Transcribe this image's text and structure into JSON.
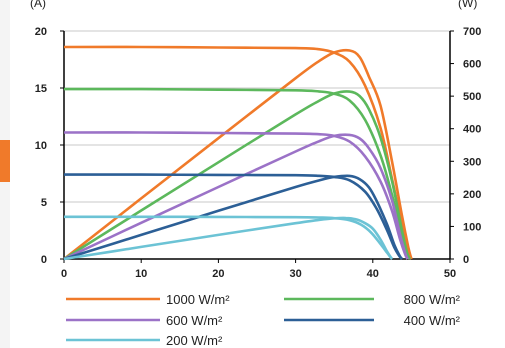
{
  "chart_data": {
    "type": "line",
    "title": "",
    "left_axis": {
      "unit_label": "(A)",
      "range": [
        0,
        20
      ],
      "ticks": [
        0,
        5,
        10,
        15,
        20
      ]
    },
    "right_axis": {
      "unit_label": "(W)",
      "range": [
        0,
        700
      ],
      "ticks": [
        0,
        100,
        200,
        300,
        400,
        500,
        600,
        700
      ]
    },
    "x_axis": {
      "range": [
        0,
        50
      ],
      "ticks": [
        0,
        10,
        20,
        30,
        40,
        50
      ]
    },
    "grid": true,
    "legend_position": "bottom",
    "series": [
      {
        "name": "1000 W/m²",
        "color": "#f07a2a",
        "current": [
          [
            0,
            18.6
          ],
          [
            10,
            18.6
          ],
          [
            20,
            18.55
          ],
          [
            30,
            18.5
          ],
          [
            33,
            18.4
          ],
          [
            35,
            18.1
          ],
          [
            37,
            17.3
          ],
          [
            39,
            15.2
          ],
          [
            41,
            11.5
          ],
          [
            42.5,
            7.0
          ],
          [
            43.8,
            3.0
          ],
          [
            44.6,
            0.8
          ],
          [
            45,
            0
          ]
        ],
        "power": [
          [
            0,
            0
          ],
          [
            10,
            186
          ],
          [
            20,
            371
          ],
          [
            30,
            555
          ],
          [
            33,
            607
          ],
          [
            35,
            634
          ],
          [
            37,
            640
          ],
          [
            38.3,
            620
          ],
          [
            39.5,
            560
          ],
          [
            41,
            471
          ],
          [
            42.5,
            298
          ],
          [
            43.8,
            131
          ],
          [
            44.6,
            36
          ],
          [
            45,
            0
          ]
        ]
      },
      {
        "name": "800 W/m²",
        "color": "#5cb85c",
        "current": [
          [
            0,
            14.9
          ],
          [
            10,
            14.9
          ],
          [
            20,
            14.85
          ],
          [
            30,
            14.8
          ],
          [
            33,
            14.7
          ],
          [
            35,
            14.5
          ],
          [
            37,
            13.9
          ],
          [
            39,
            12.2
          ],
          [
            41,
            9.1
          ],
          [
            42.5,
            5.6
          ],
          [
            43.7,
            2.2
          ],
          [
            44.4,
            0.5
          ],
          [
            44.8,
            0
          ]
        ],
        "power": [
          [
            0,
            0
          ],
          [
            10,
            149
          ],
          [
            20,
            297
          ],
          [
            30,
            444
          ],
          [
            33,
            485
          ],
          [
            35,
            508
          ],
          [
            37,
            514
          ],
          [
            38.3,
            500
          ],
          [
            39.5,
            460
          ],
          [
            41,
            373
          ],
          [
            42.5,
            238
          ],
          [
            43.7,
            96
          ],
          [
            44.4,
            22
          ],
          [
            44.8,
            0
          ]
        ]
      },
      {
        "name": "600 W/m²",
        "color": "#9b72c7",
        "current": [
          [
            0,
            11.1
          ],
          [
            10,
            11.1
          ],
          [
            20,
            11.05
          ],
          [
            30,
            11.0
          ],
          [
            33,
            10.95
          ],
          [
            35,
            10.8
          ],
          [
            37,
            10.3
          ],
          [
            39,
            9.0
          ],
          [
            41,
            6.8
          ],
          [
            42.5,
            4.2
          ],
          [
            43.5,
            1.8
          ],
          [
            44.2,
            0.4
          ],
          [
            44.5,
            0
          ]
        ],
        "power": [
          [
            0,
            0
          ],
          [
            10,
            111
          ],
          [
            20,
            221
          ],
          [
            30,
            330
          ],
          [
            33,
            361
          ],
          [
            35,
            378
          ],
          [
            37,
            381
          ],
          [
            38.3,
            370
          ],
          [
            39.5,
            340
          ],
          [
            41,
            279
          ],
          [
            42.5,
            179
          ],
          [
            43.5,
            78
          ],
          [
            44.2,
            18
          ],
          [
            44.5,
            0
          ]
        ]
      },
      {
        "name": "400 W/m²",
        "color": "#2c5f96",
        "current": [
          [
            0,
            7.4
          ],
          [
            10,
            7.4
          ],
          [
            20,
            7.38
          ],
          [
            30,
            7.35
          ],
          [
            33,
            7.3
          ],
          [
            35,
            7.2
          ],
          [
            37,
            6.9
          ],
          [
            39,
            5.9
          ],
          [
            40.5,
            4.4
          ],
          [
            41.8,
            2.6
          ],
          [
            42.8,
            1.0
          ],
          [
            43.5,
            0.2
          ],
          [
            43.8,
            0
          ]
        ],
        "power": [
          [
            0,
            0
          ],
          [
            10,
            74
          ],
          [
            20,
            148
          ],
          [
            30,
            221
          ],
          [
            33,
            241
          ],
          [
            35,
            252
          ],
          [
            37,
            255
          ],
          [
            38.3,
            245
          ],
          [
            39.5,
            220
          ],
          [
            40.5,
            178
          ],
          [
            41.8,
            109
          ],
          [
            42.8,
            43
          ],
          [
            43.5,
            9
          ],
          [
            43.8,
            0
          ]
        ]
      },
      {
        "name": "200 W/m²",
        "color": "#6cc3d5",
        "current": [
          [
            0,
            3.7
          ],
          [
            10,
            3.7
          ],
          [
            20,
            3.69
          ],
          [
            30,
            3.67
          ],
          [
            33,
            3.64
          ],
          [
            35,
            3.58
          ],
          [
            37,
            3.4
          ],
          [
            38.5,
            3.0
          ],
          [
            39.8,
            2.3
          ],
          [
            40.9,
            1.4
          ],
          [
            41.8,
            0.6
          ],
          [
            42.3,
            0.15
          ],
          [
            42.5,
            0
          ]
        ],
        "power": [
          [
            0,
            0
          ],
          [
            10,
            37
          ],
          [
            20,
            74
          ],
          [
            30,
            110
          ],
          [
            33,
            120
          ],
          [
            35,
            125
          ],
          [
            36.5,
            126
          ],
          [
            37.8,
            122
          ],
          [
            39,
            110
          ],
          [
            40,
            93
          ],
          [
            41,
            60
          ],
          [
            41.8,
            25
          ],
          [
            42.3,
            6
          ],
          [
            42.5,
            0
          ]
        ]
      }
    ]
  },
  "colors": {
    "axis": "#000000",
    "grid": "#c8c8c8",
    "left_strip_accent": "#f07a2a",
    "left_strip_gray": "#e3e3e3"
  }
}
